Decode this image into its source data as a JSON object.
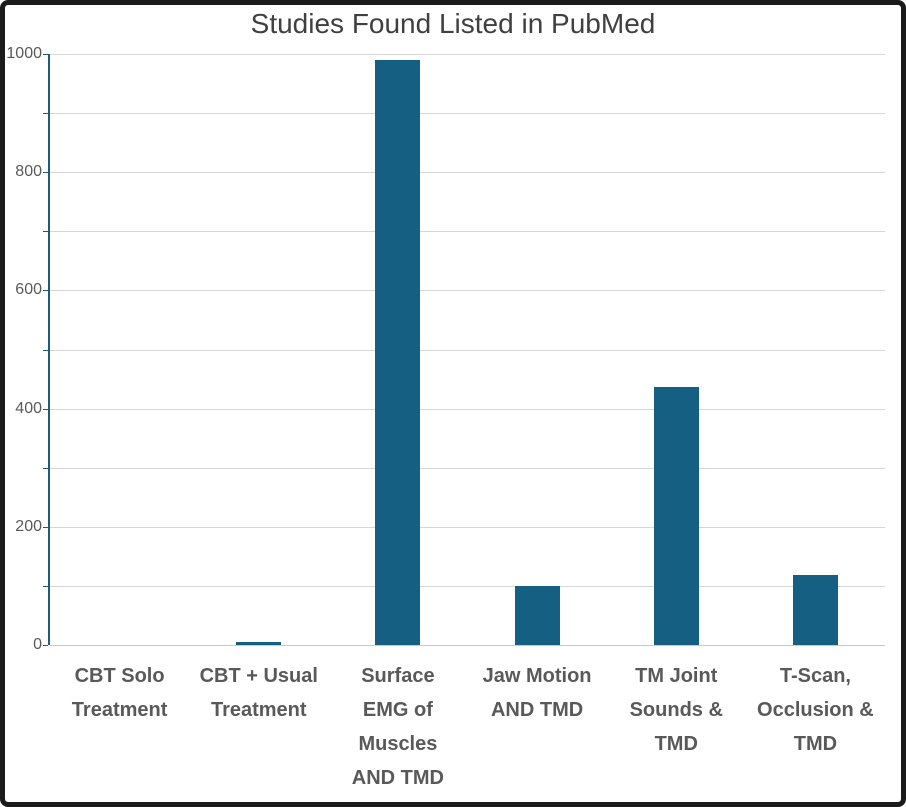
{
  "page": {
    "title": "Studies Found Listed in PubMed"
  },
  "chart_data": {
    "type": "bar",
    "title": "Studies Found Listed in PubMed",
    "categories": [
      "CBT Solo Treatment",
      "CBT + Usual Treatment",
      "Surface EMG of Muscles AND TMD",
      "Jaw Motion AND TMD",
      "TM Joint Sounds & TMD",
      "T-Scan, Occlusion & TMD"
    ],
    "categories_wrapped": [
      "CBT Solo\nTreatment",
      "CBT + Usual\nTreatment",
      "Surface\nEMG of\nMuscles\nAND TMD",
      "Jaw Motion\nAND TMD",
      "TM Joint\nSounds &\nTMD",
      "T-Scan,\nOcclusion &\nTMD"
    ],
    "values": [
      0,
      5,
      990,
      100,
      437,
      118
    ],
    "xlabel": "",
    "ylabel": "",
    "ylim": [
      0,
      1000
    ],
    "y_major_tick_interval": 200,
    "y_gridline_interval": 100,
    "y_tick_labels": [
      "0",
      "200",
      "400",
      "600",
      "800",
      "1000"
    ],
    "grid": true,
    "legend_position": "none",
    "bar_color": "#156082"
  },
  "colors": {
    "bar": "#156082",
    "axis_line": "#1d5a7c",
    "gridline": "#d6d6d6",
    "title_text": "#404040",
    "axis_label_text": "#595959",
    "frame_border": "#1b1b1b",
    "background": "#ffffff"
  }
}
